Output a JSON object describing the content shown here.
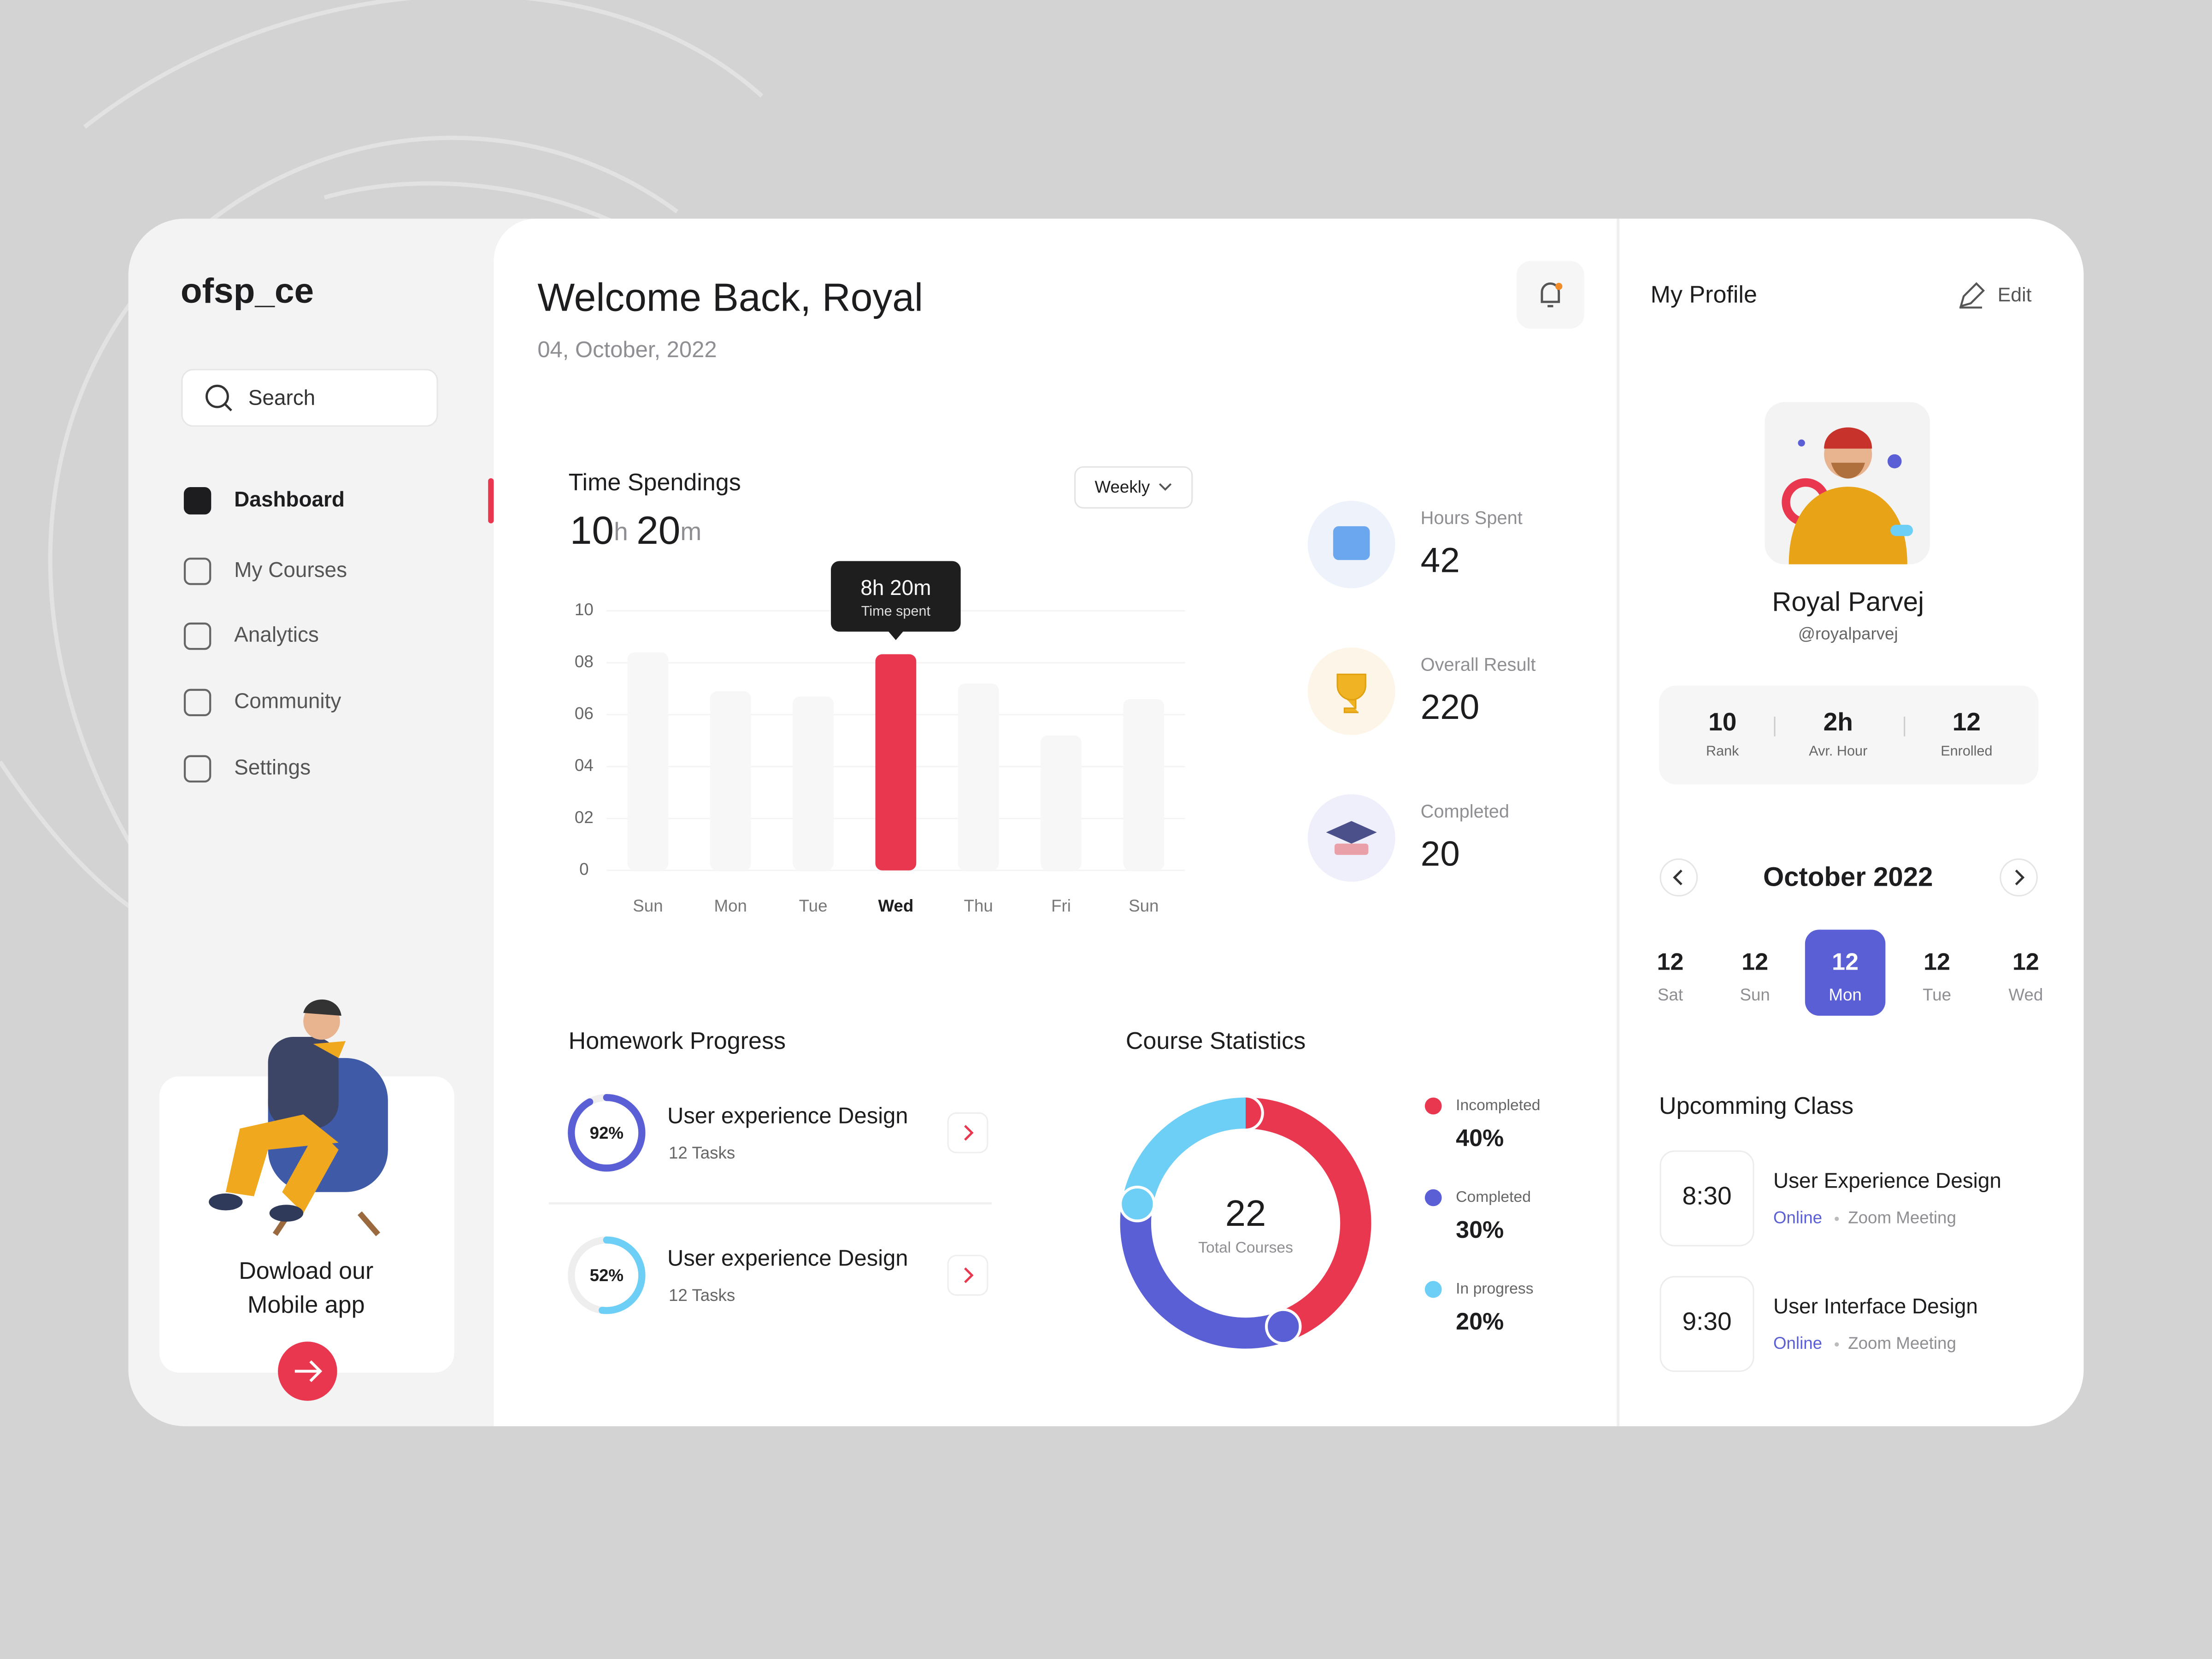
{
  "brand": "ofsp_ce",
  "search_placeholder": "Search",
  "nav": {
    "items": [
      "Dashboard",
      "My Courses",
      "Analytics",
      "Community",
      "Settings"
    ],
    "active": 0
  },
  "promo": {
    "lines": [
      "Dowload our",
      "Mobile app"
    ]
  },
  "header": {
    "title": "Welcome Back, Royal",
    "date": "04, October, 2022"
  },
  "time_spendings": {
    "title": "Time Spendings",
    "total": {
      "hours": "10",
      "hours_unit": "h",
      "minutes": "20",
      "minutes_unit": "m"
    },
    "filter": "Weekly",
    "chart_data": {
      "type": "bar",
      "categories": [
        "Sun",
        "Mon",
        "Tue",
        "Wed",
        "Thu",
        "Fri",
        "Sun"
      ],
      "values": [
        8.4,
        6.9,
        6.7,
        8.33,
        7.2,
        5.2,
        6.6
      ],
      "color": "#f7f7f7",
      "highlight": 3,
      "highlight_color": "#e8374f",
      "ylim": [
        0,
        10
      ],
      "yticks": [
        0,
        {
          "value": 2,
          "label": "02"
        },
        {
          "value": 4,
          "label": "04"
        },
        {
          "value": 6,
          "label": "06"
        },
        {
          "value": 8,
          "label": "08"
        },
        10
      ],
      "grid": true,
      "tooltip": {
        "value": "8h 20m",
        "label": "Time spent"
      }
    }
  },
  "stats": [
    {
      "label": "Hours Spent",
      "value": 42
    },
    {
      "label": "Overall Result",
      "value": 220
    },
    {
      "label": "Completed",
      "value": 20
    }
  ],
  "homework": {
    "title": "Homework Progress",
    "items": [
      {
        "title": "User experience Design",
        "tasks": "12 Tasks",
        "value": 92,
        "value_label": "92%",
        "color": "#5b5fd6"
      },
      {
        "title": "User experience Design",
        "tasks": "12 Tasks",
        "value": 52,
        "value_label": "52%",
        "color": "#6dcff6"
      }
    ]
  },
  "course_statistics": {
    "title": "Course Statistics",
    "chart_data": {
      "type": "pie",
      "center_value": 22,
      "center_label": "Total Courses",
      "categories": [
        "Incompleted",
        "Completed",
        "In progress"
      ],
      "values": [
        40,
        30,
        20
      ],
      "value_labels": [
        "40%",
        "30%",
        "20%"
      ],
      "colors": [
        "#e8374f",
        "#5b5fd6",
        "#6dcff6"
      ]
    }
  },
  "profile": {
    "title": "My Profile",
    "edit": "Edit",
    "name": "Royal Parvej",
    "handle": "@royalparvej",
    "stats": [
      {
        "value": 10,
        "label": "Rank"
      },
      {
        "value": "2h",
        "label": "Avr. Hour"
      },
      {
        "value": 12,
        "label": "Enrolled"
      }
    ]
  },
  "calendar": {
    "month": "October 2022",
    "days": [
      {
        "date": 12,
        "day": "Sat"
      },
      {
        "date": 12,
        "day": "Sun"
      },
      {
        "date": 12,
        "day": "Mon"
      },
      {
        "date": 12,
        "day": "Tue"
      },
      {
        "date": 12,
        "day": "Wed"
      }
    ],
    "selected": 2
  },
  "upcoming": {
    "title": "Upcomming Class",
    "items": [
      {
        "time": "8:30",
        "title": "User Experience Design",
        "mode": "Online",
        "platform": "Zoom Meeting"
      },
      {
        "time": "9:30",
        "title": "User Interface Design",
        "mode": "Online",
        "platform": "Zoom Meeting"
      }
    ]
  }
}
